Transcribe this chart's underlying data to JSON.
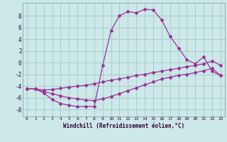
{
  "xlabel": "Windchill (Refroidissement éolien,°C)",
  "bg_color": "#cce8e8",
  "grid_color": "#aacccc",
  "line_color": "#993399",
  "spine_color": "#7799aa",
  "xlim": [
    -0.5,
    23.5
  ],
  "ylim": [
    -9.2,
    10.2
  ],
  "xticks": [
    0,
    1,
    2,
    3,
    4,
    5,
    6,
    7,
    8,
    9,
    10,
    11,
    12,
    13,
    14,
    15,
    16,
    17,
    18,
    19,
    20,
    21,
    22,
    23
  ],
  "yticks": [
    -8,
    -6,
    -4,
    -2,
    0,
    2,
    4,
    6,
    8
  ],
  "series1_x": [
    0,
    1,
    2,
    3,
    4,
    5,
    6,
    7,
    8,
    9,
    10,
    11,
    12,
    13,
    14,
    15,
    16,
    17,
    18,
    19,
    20,
    21,
    22,
    23
  ],
  "series1_y": [
    -4.5,
    -4.5,
    -5.2,
    -6.3,
    -7.0,
    -7.3,
    -7.5,
    -7.5,
    -7.5,
    -0.5,
    5.5,
    8.0,
    8.7,
    8.5,
    9.1,
    9.0,
    7.3,
    4.5,
    2.5,
    0.5,
    -0.2,
    1.0,
    -1.5,
    -2.2
  ],
  "series2_x": [
    0,
    1,
    2,
    3,
    4,
    5,
    6,
    7,
    8,
    9,
    10,
    11,
    12,
    13,
    14,
    15,
    16,
    17,
    18,
    19,
    20,
    21,
    22,
    23
  ],
  "series2_y": [
    -4.5,
    -4.5,
    -4.7,
    -4.6,
    -4.4,
    -4.2,
    -4.0,
    -3.9,
    -3.6,
    -3.3,
    -3.0,
    -2.8,
    -2.5,
    -2.2,
    -2.0,
    -1.7,
    -1.5,
    -1.2,
    -1.0,
    -0.7,
    -0.5,
    -0.2,
    0.3,
    -0.5
  ],
  "series3_x": [
    0,
    1,
    2,
    3,
    4,
    5,
    6,
    7,
    8,
    9,
    10,
    11,
    12,
    13,
    14,
    15,
    16,
    17,
    18,
    19,
    20,
    21,
    22,
    23
  ],
  "series3_y": [
    -4.5,
    -4.5,
    -5.0,
    -5.3,
    -5.7,
    -6.0,
    -6.2,
    -6.4,
    -6.5,
    -6.2,
    -5.8,
    -5.3,
    -4.8,
    -4.3,
    -3.8,
    -3.3,
    -2.8,
    -2.5,
    -2.2,
    -2.0,
    -1.7,
    -1.4,
    -1.0,
    -2.2
  ]
}
